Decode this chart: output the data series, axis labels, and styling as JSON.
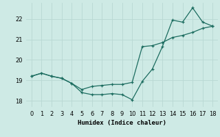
{
  "x": [
    0,
    1,
    2,
    3,
    4,
    5,
    6,
    7,
    8,
    9,
    10,
    11,
    12,
    13,
    14,
    15,
    16,
    17,
    18
  ],
  "y_jagged": [
    19.2,
    19.35,
    19.2,
    19.1,
    18.85,
    18.4,
    18.3,
    18.3,
    18.35,
    18.3,
    18.05,
    18.95,
    19.55,
    20.65,
    21.95,
    21.85,
    22.55,
    21.85,
    21.65
  ],
  "y_straight": [
    19.2,
    19.35,
    19.2,
    19.1,
    18.85,
    18.55,
    18.7,
    18.75,
    18.8,
    18.8,
    18.9,
    20.65,
    20.7,
    20.85,
    21.1,
    21.2,
    21.35,
    21.55,
    21.65
  ],
  "line_color": "#1a6b5e",
  "bg_color": "#ceeae5",
  "grid_color": "#b8d8d3",
  "xlabel": "Humidex (Indice chaleur)",
  "xlim": [
    -0.5,
    18.5
  ],
  "ylim": [
    17.7,
    22.8
  ],
  "yticks": [
    18,
    19,
    20,
    21,
    22
  ],
  "xticks": [
    0,
    1,
    2,
    3,
    4,
    5,
    6,
    7,
    8,
    9,
    10,
    11,
    12,
    13,
    14,
    15,
    16,
    17,
    18
  ]
}
